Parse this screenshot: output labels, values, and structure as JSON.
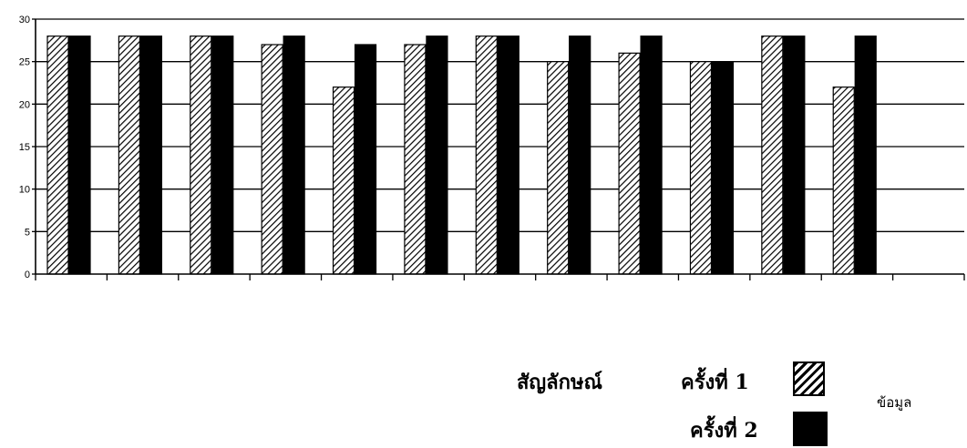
{
  "chart_data": {
    "type": "bar",
    "categories": [
      "",
      "",
      "",
      "",
      "",
      "",
      "",
      "",
      "",
      "",
      "",
      ""
    ],
    "series": [
      {
        "name": "ครั้งที่ 1",
        "values": [
          28,
          28,
          28,
          27,
          22,
          27,
          28,
          25,
          26,
          25,
          28,
          22
        ],
        "pattern": "hatch",
        "color": "#000000"
      },
      {
        "name": "ครั้งที่ 2",
        "values": [
          28,
          28,
          28,
          28,
          27,
          28,
          28,
          28,
          28,
          25,
          28,
          28
        ],
        "pattern": "solid",
        "color": "#000000"
      }
    ],
    "yticks": [
      0,
      5,
      10,
      15,
      20,
      25,
      30
    ],
    "ylim": [
      0,
      30
    ],
    "grid": true,
    "title": "",
    "xlabel": "",
    "ylabel": ""
  },
  "legend": {
    "title": "สัญลักษณ์",
    "item1": "ครั้งที่ 1",
    "item2": "ครั้งที่ 2"
  },
  "note": "ข้อมูล"
}
